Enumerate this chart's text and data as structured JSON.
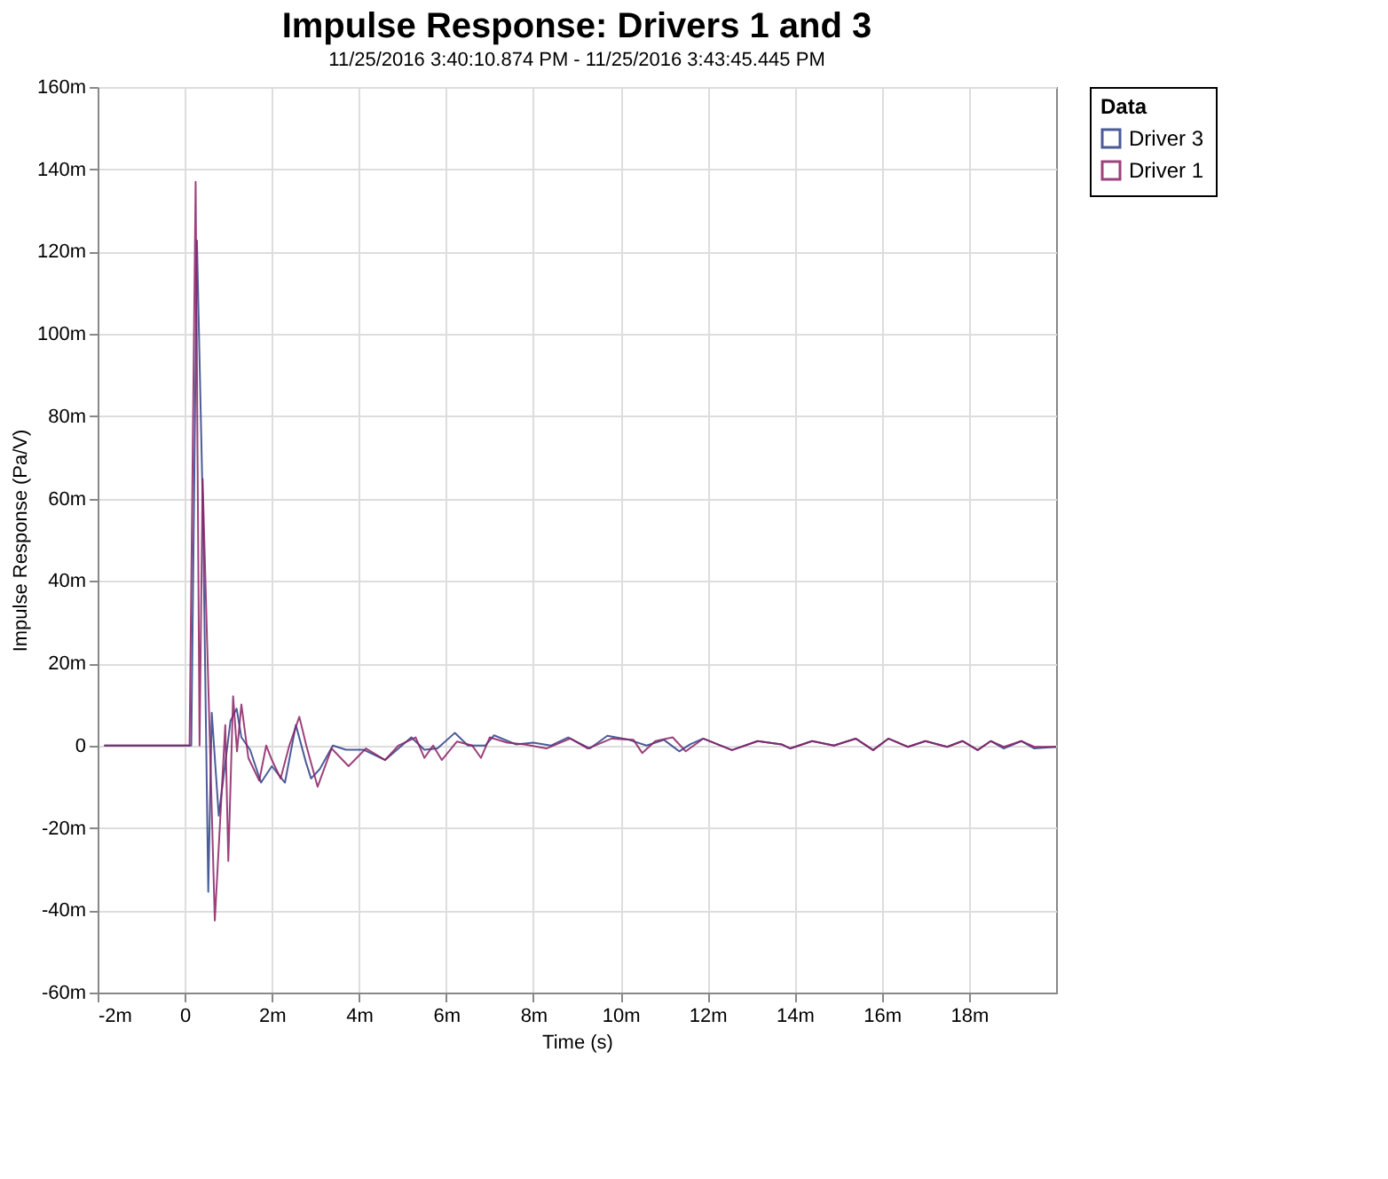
{
  "chart_data": {
    "type": "line",
    "title": "Impulse Response: Drivers 1 and 3",
    "subtitle": "11/25/2016 3:40:10.874 PM - 11/25/2016 3:43:45.445 PM",
    "xlabel": "Time (s)",
    "ylabel": "Impulse Response (Pa/V)",
    "legend_title": "Data",
    "legend": "right",
    "grid": true,
    "marker": "none",
    "line_style": "solid",
    "xlim": [
      -2,
      20
    ],
    "xticks": [
      {
        "value": -2,
        "label": "-2m"
      },
      0,
      {
        "value": 2,
        "label": "2m"
      },
      {
        "value": 4,
        "label": "4m"
      },
      {
        "value": 6,
        "label": "6m"
      },
      {
        "value": 8,
        "label": "8m"
      },
      {
        "value": 10,
        "label": "10m"
      },
      {
        "value": 12,
        "label": "12m"
      },
      {
        "value": 14,
        "label": "14m"
      },
      {
        "value": 16,
        "label": "16m"
      },
      {
        "value": 18,
        "label": "18m"
      }
    ],
    "ylim": [
      -60,
      160
    ],
    "yticks": [
      {
        "value": -60,
        "label": "-60m"
      },
      {
        "value": -40,
        "label": "-40m"
      },
      {
        "value": -20,
        "label": "-20m"
      },
      0,
      {
        "value": 20,
        "label": "20m"
      },
      {
        "value": 40,
        "label": "40m"
      },
      {
        "value": 60,
        "label": "60m"
      },
      {
        "value": 80,
        "label": "80m"
      },
      {
        "value": 100,
        "label": "100m"
      },
      {
        "value": 120,
        "label": "120m"
      },
      {
        "value": 140,
        "label": "140m"
      },
      {
        "value": 160,
        "label": "160m"
      }
    ],
    "series": [
      {
        "name": "Driver 3",
        "color": "#2b3f87",
        "x": [
          -1.85,
          0.15,
          0.28,
          0.42,
          0.54,
          0.62,
          0.78,
          1.05,
          1.19,
          1.3,
          1.5,
          1.75,
          2.0,
          2.3,
          2.55,
          2.78,
          2.9,
          3.1,
          3.4,
          3.7,
          4.1,
          4.6,
          5.2,
          5.5,
          5.8,
          6.2,
          6.5,
          6.9,
          7.1,
          7.6,
          8.0,
          8.4,
          8.8,
          9.3,
          9.7,
          10.2,
          10.6,
          11.0,
          11.35,
          11.6,
          11.9,
          12.56,
          13.15,
          13.7,
          13.9,
          14.4,
          14.9,
          15.4,
          15.8,
          16.15,
          16.6,
          17.0,
          17.5,
          17.85,
          18.2,
          18.5,
          18.8,
          19.2,
          19.5,
          20.0
        ],
        "values": [
          0,
          0,
          122.7,
          55,
          -35.5,
          8,
          -17,
          6,
          9,
          2,
          -1,
          -9,
          -5,
          -9,
          5,
          -4,
          -8,
          -5.7,
          0,
          -1,
          -1,
          -3.5,
          2,
          -1,
          -0.7,
          3.1,
          0,
          0,
          2.5,
          0.3,
          0.7,
          0,
          2,
          -0.7,
          2.4,
          1.4,
          0,
          1.4,
          -1.4,
          0.3,
          1.7,
          -1.1,
          1.1,
          0.3,
          -0.7,
          1.1,
          0,
          1.7,
          -1.1,
          1.7,
          -0.3,
          1.1,
          -0.3,
          1.1,
          -1.1,
          1.1,
          -0.7,
          1.1,
          -0.7,
          -0.3
        ]
      },
      {
        "name": "Driver 1",
        "color": "#8b2064",
        "x": [
          -1.85,
          0.11,
          0.25,
          0.34,
          0.41,
          0.69,
          0.93,
          1.0,
          1.11,
          1.2,
          1.3,
          1.46,
          1.71,
          1.87,
          2.0,
          2.2,
          2.4,
          2.63,
          2.79,
          3.05,
          3.37,
          3.76,
          4.16,
          4.6,
          4.9,
          5.3,
          5.5,
          5.7,
          5.9,
          6.25,
          6.6,
          6.8,
          7.0,
          7.4,
          7.8,
          8.3,
          8.85,
          9.25,
          9.8,
          10.3,
          10.5,
          10.8,
          11.2,
          11.5,
          11.9,
          12.56,
          13.15,
          13.7,
          13.9,
          14.4,
          14.9,
          15.4,
          15.8,
          16.15,
          16.6,
          17.0,
          17.5,
          17.85,
          18.2,
          18.5,
          18.8,
          19.2,
          19.5,
          20.0
        ],
        "values": [
          0,
          0,
          137,
          0,
          64.8,
          -42.5,
          5,
          -28,
          12,
          -1.4,
          10,
          -3,
          -8.5,
          0,
          -3.5,
          -8,
          0,
          7,
          0,
          -10,
          -0.7,
          -5,
          -0.7,
          -3.5,
          0,
          2,
          -3,
          0,
          -3.5,
          1,
          0,
          -3,
          2,
          0.7,
          0.3,
          -0.7,
          1.7,
          -0.7,
          1.7,
          1.4,
          -1.8,
          1.1,
          2,
          -1.4,
          1.7,
          -1.1,
          1.1,
          0.3,
          -0.7,
          1.1,
          0,
          1.7,
          -1.1,
          1.7,
          -0.3,
          1.1,
          -0.3,
          1.1,
          -1.1,
          1.1,
          -0.3,
          1.1,
          -0.3,
          -0.3
        ]
      }
    ]
  }
}
